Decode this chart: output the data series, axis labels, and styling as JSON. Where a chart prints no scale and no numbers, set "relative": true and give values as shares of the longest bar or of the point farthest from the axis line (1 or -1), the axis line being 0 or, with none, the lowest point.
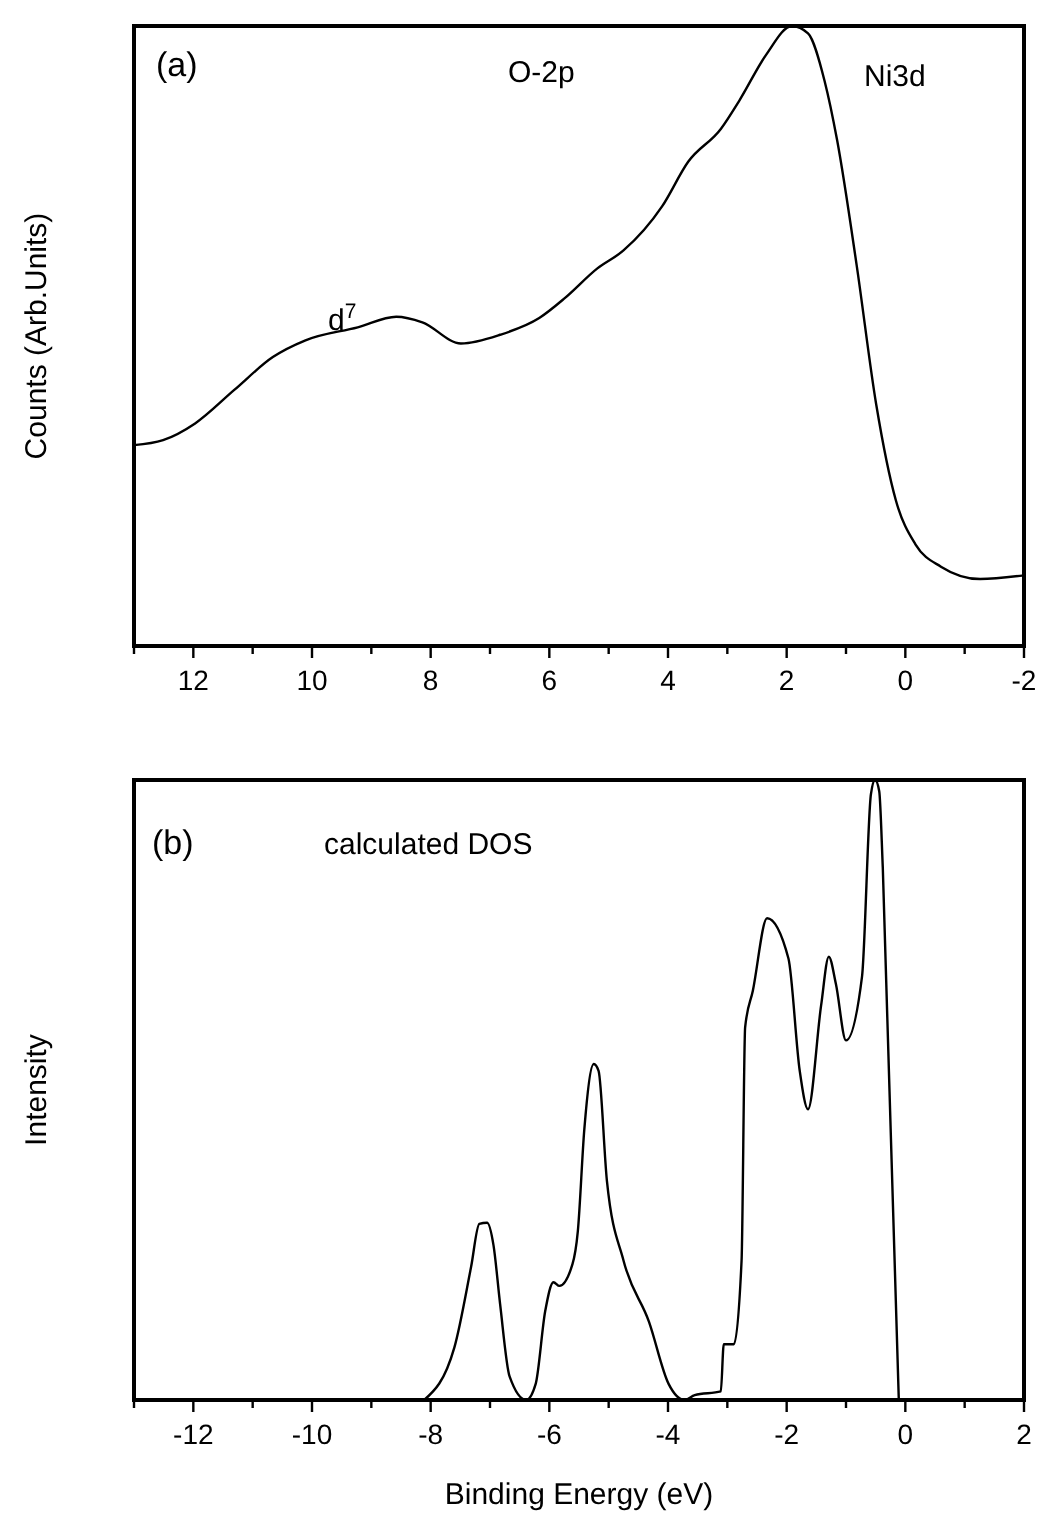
{
  "chart_data": [
    {
      "type": "line",
      "relative": true,
      "ylabel": "Counts (Arb.Units)",
      "annotations": [
        "(a)",
        "O-2p",
        "Ni3d",
        "d$^{7}$"
      ],
      "xlim": [
        13,
        -2
      ],
      "xticks": [
        {
          "value": 13,
          "label": null
        },
        12,
        {
          "value": 11,
          "label": null
        },
        10,
        {
          "value": 9,
          "label": null
        },
        8,
        {
          "value": 7,
          "label": null
        },
        6,
        {
          "value": 5,
          "label": null
        },
        4,
        {
          "value": 3,
          "label": null
        },
        2,
        {
          "value": 1,
          "label": null
        },
        0,
        {
          "value": -1,
          "label": null
        },
        -2
      ],
      "marker": "none",
      "line_style": "solid",
      "color": "#000000",
      "x": [
        13,
        12.51,
        11.97,
        11.31,
        10.66,
        10.11,
        9.23,
        8.58,
        8.14,
        7.49,
        6.83,
        6.17,
        5.74,
        5.19,
        4.75,
        4.1,
        3.66,
        3.11,
        2.79,
        2.35,
        1.91,
        1.64,
        1.36,
        1.15,
        0.82,
        0.49,
        0.16,
        -0.17,
        -0.6,
        -1.26,
        -2
      ],
      "values": [
        0.324,
        0.332,
        0.359,
        0.413,
        0.466,
        0.493,
        0.514,
        0.531,
        0.522,
        0.488,
        0.502,
        0.529,
        0.561,
        0.609,
        0.638,
        0.709,
        0.781,
        0.834,
        0.881,
        0.953,
        1,
        0.988,
        0.911,
        0.816,
        0.614,
        0.389,
        0.235,
        0.164,
        0.128,
        0.108,
        0.114
      ]
    },
    {
      "type": "line",
      "relative": true,
      "ylabel": "Intensity",
      "xlabel": "Binding Energy (eV)",
      "annotations": [
        "(b)",
        "calculated DOS"
      ],
      "xlim": [
        -13,
        2
      ],
      "xticks": [
        {
          "value": -13,
          "label": null
        },
        -12,
        {
          "value": -11,
          "label": null
        },
        -10,
        {
          "value": -9,
          "label": null
        },
        -8,
        {
          "value": -7,
          "label": null
        },
        -6,
        {
          "value": -5,
          "label": null
        },
        -4,
        {
          "value": -3,
          "label": null
        },
        -2,
        {
          "value": -1,
          "label": null
        },
        0,
        {
          "value": 1,
          "label": null
        },
        2
      ],
      "marker": "none",
      "line_style": "solid",
      "color": "#000000",
      "x": [
        -8.11,
        -7.6,
        -7.32,
        -7.18,
        -7.05,
        -6.94,
        -6.83,
        -6.67,
        -6.39,
        -6.23,
        -6.07,
        -5.93,
        -5.83,
        -5.61,
        -5.52,
        -5.41,
        -5.25,
        -5.17,
        -5.03,
        -4.75,
        -4.32,
        -3.99,
        -3.72,
        -3.55,
        -3.11,
        -3.06,
        -2.89,
        -2.76,
        -2.7,
        -2.57,
        -2.33,
        -1.97,
        -1.78,
        -1.64,
        -1.42,
        -1.29,
        -1.17,
        -1,
        -0.73,
        -0.58,
        -0.51,
        -0.44,
        -0.38,
        -0.11
      ],
      "values": [
        0,
        0.085,
        0.214,
        0.284,
        0.286,
        0.249,
        0.155,
        0.038,
        0,
        0.026,
        0.143,
        0.19,
        0.184,
        0.219,
        0.272,
        0.437,
        0.542,
        0.531,
        0.354,
        0.225,
        0.126,
        0.026,
        0,
        0.008,
        0.014,
        0.09,
        0.09,
        0.225,
        0.601,
        0.66,
        0.777,
        0.712,
        0.531,
        0.469,
        0.636,
        0.715,
        0.671,
        0.58,
        0.683,
        0.977,
        1,
        0.982,
        0.859,
        0
      ]
    }
  ]
}
